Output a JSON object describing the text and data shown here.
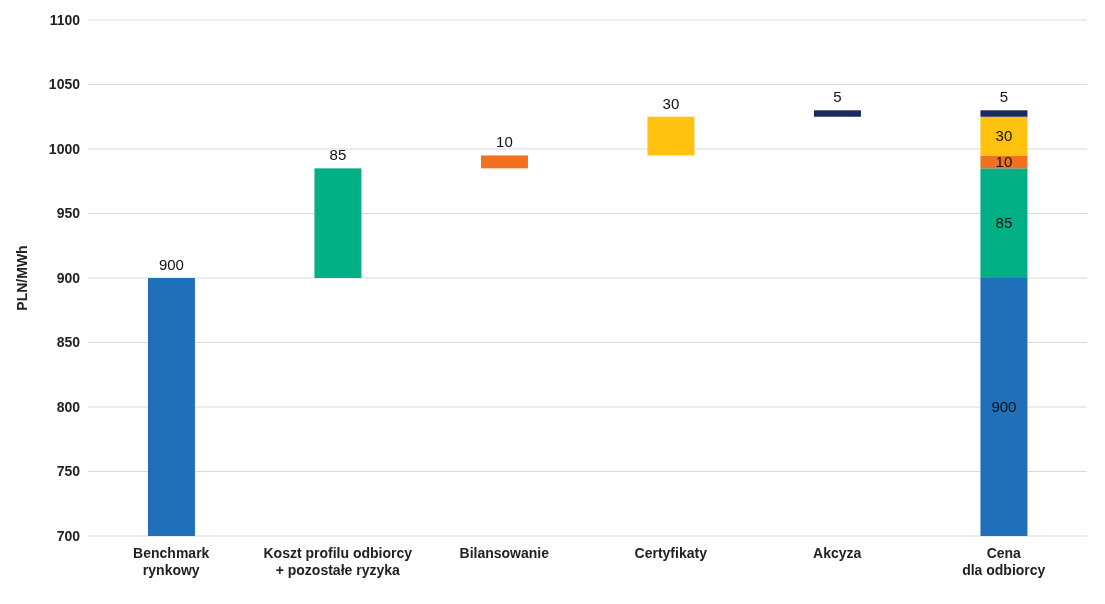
{
  "chart_data": {
    "type": "bar",
    "ylabel": "PLN/MWh",
    "categories": [
      "Benchmark\nrynkowy",
      "Koszt profilu odbiorcy\n+ pozostałe ryzyka",
      "Bilansowanie",
      "Certyfikaty",
      "Akcyza",
      "Cena\ndla odbiorcy"
    ],
    "series": [
      {
        "color": "#1f70b8",
        "values": [
          900,
          null,
          null,
          null,
          null,
          900
        ],
        "base": [
          0,
          null,
          null,
          null,
          null,
          0
        ]
      },
      {
        "color": "#00b084",
        "values": [
          null,
          85,
          null,
          null,
          null,
          85
        ],
        "base": [
          null,
          900,
          null,
          null,
          null,
          900
        ]
      },
      {
        "color": "#f07122",
        "values": [
          null,
          null,
          10,
          null,
          null,
          10
        ],
        "base": [
          null,
          null,
          985,
          null,
          null,
          985
        ]
      },
      {
        "color": "#ffc20e",
        "values": [
          null,
          null,
          null,
          30,
          null,
          30
        ],
        "base": [
          null,
          null,
          null,
          995,
          null,
          995
        ]
      },
      {
        "color": "#1b2a5c",
        "values": [
          null,
          null,
          null,
          null,
          5,
          5
        ],
        "base": [
          null,
          null,
          null,
          null,
          1025,
          1025
        ]
      }
    ],
    "data_labels": true,
    "ylim": [
      700,
      1100
    ],
    "yticks": [
      700,
      750,
      800,
      850,
      900,
      950,
      1000,
      1050,
      1100
    ],
    "grid": "y",
    "legend": false
  }
}
